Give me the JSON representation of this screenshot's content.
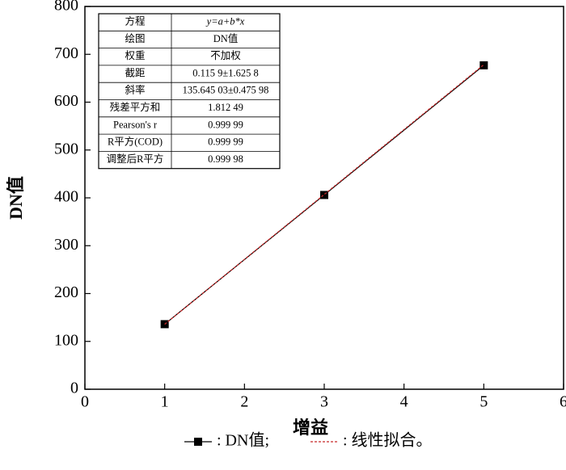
{
  "chart_data": {
    "type": "line",
    "xlabel": "增益",
    "ylabel": "DN值",
    "xlim": [
      0,
      6
    ],
    "xticks": [
      0,
      1,
      2,
      3,
      4,
      5,
      6
    ],
    "ylim": [
      0,
      800
    ],
    "yticks": [
      0,
      100,
      200,
      300,
      400,
      500,
      600,
      700,
      800
    ],
    "series": [
      {
        "name": ": DN值;",
        "color": "#000000",
        "marker": "square",
        "x": [
          1,
          3,
          5
        ],
        "values": [
          136,
          406,
          677
        ]
      },
      {
        "name": ": 线性拟合。",
        "color": "#c62828",
        "dashed": true,
        "x": [
          1,
          5
        ],
        "values": [
          135.76,
          678.34
        ]
      }
    ],
    "fit_table": {
      "rows": [
        [
          "方程",
          "y=a+b*x"
        ],
        [
          "绘图",
          "DN值"
        ],
        [
          "权重",
          "不加权"
        ],
        [
          "截距",
          "0.115 9±1.625 8"
        ],
        [
          "斜率",
          "135.645 03±0.475 98"
        ],
        [
          "残差平方和",
          "1.812 49"
        ],
        [
          "Pearson's r",
          "0.999 99"
        ],
        [
          "R平方(COD)",
          "0.999 99"
        ],
        [
          "调整后R平方",
          "0.999 98"
        ]
      ]
    }
  }
}
